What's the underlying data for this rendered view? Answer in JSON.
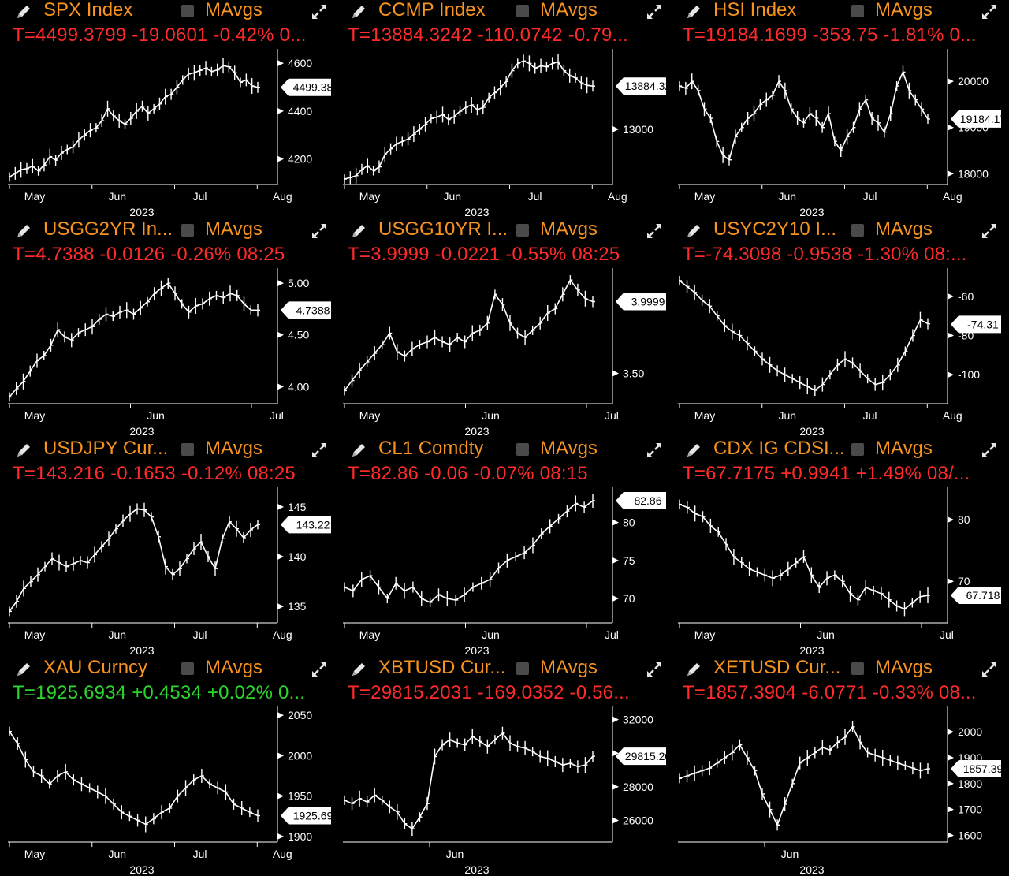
{
  "colors": {
    "ticker": "#f7931e",
    "negative": "#ff2a2a",
    "positive": "#2bd62b",
    "background": "#000000",
    "price_line": "#ffffff",
    "ma_toggle": "#4a4a4a"
  },
  "icons": {
    "edit": "pencil-icon",
    "expand": "expand-arrows-icon",
    "toggle": "checkbox-icon"
  },
  "ma_label": "MAvgs",
  "year_label": "2023",
  "panels": [
    {
      "ticker": "SPX Index",
      "quote": "T=4499.3799 -19.0601 -0.42% 0...",
      "direction": "neg",
      "chart_data": {
        "type": "line",
        "x_labels": [
          "May",
          "Jun",
          "Jul",
          "Aug"
        ],
        "y_ticks": [
          "4600",
          "4400",
          "4200"
        ],
        "ylim": [
          4100,
          4640
        ],
        "last_value_label": "4499.38",
        "last": 4499.38,
        "values": [
          4125,
          4140,
          4155,
          4160,
          4170,
          4150,
          4175,
          4210,
          4195,
          4225,
          4240,
          4250,
          4280,
          4300,
          4320,
          4330,
          4360,
          4410,
          4380,
          4360,
          4345,
          4370,
          4400,
          4420,
          4390,
          4410,
          4430,
          4460,
          4470,
          4500,
          4530,
          4555,
          4560,
          4570,
          4580,
          4565,
          4572,
          4590,
          4585,
          4560,
          4520,
          4530,
          4505,
          4499
        ]
      }
    },
    {
      "ticker": "CCMP Index",
      "quote": "T=13884.3242 -110.0742 -0.79...",
      "direction": "neg",
      "chart_data": {
        "type": "line",
        "x_labels": [
          "May",
          "Jun",
          "Jul",
          "Aug"
        ],
        "y_ticks": [
          "13000"
        ],
        "ylim": [
          11900,
          14550
        ],
        "last_value_label": "13884.32",
        "last": 13884.32,
        "values": [
          11980,
          12010,
          12050,
          12180,
          12250,
          12150,
          12230,
          12480,
          12600,
          12700,
          12750,
          12800,
          12900,
          13000,
          13100,
          13220,
          13250,
          13300,
          13200,
          13260,
          13370,
          13450,
          13500,
          13400,
          13450,
          13650,
          13750,
          13850,
          13980,
          14200,
          14350,
          14400,
          14350,
          14250,
          14300,
          14280,
          14350,
          14380,
          14200,
          14100,
          14050,
          13950,
          13900,
          13884
        ]
      }
    },
    {
      "ticker": "HSI Index",
      "quote": "T=19184.1699 -353.75 -1.81% 0...",
      "direction": "neg",
      "chart_data": {
        "type": "line",
        "x_labels": [
          "May",
          "Jun",
          "Jul",
          "Aug"
        ],
        "y_ticks": [
          "20000",
          "19000",
          "18000"
        ],
        "ylim": [
          17800,
          20600
        ],
        "last_value_label": "19184.17",
        "last": 19184.17,
        "values": [
          19900,
          19850,
          20000,
          19800,
          19400,
          19200,
          18700,
          18400,
          18300,
          18800,
          19000,
          19200,
          19300,
          19500,
          19600,
          19700,
          20000,
          19800,
          19400,
          19200,
          19100,
          19300,
          19200,
          19000,
          19300,
          18700,
          18500,
          18800,
          19000,
          19400,
          19600,
          19200,
          19100,
          18900,
          19300,
          19900,
          20200,
          19800,
          19600,
          19400,
          19184
        ]
      }
    },
    {
      "ticker": "USGG2YR In...",
      "quote": "T=4.7388 -0.0126 -0.26% 08:25",
      "direction": "neg",
      "chart_data": {
        "type": "line",
        "x_labels": [
          "May",
          "Jun",
          "Jul"
        ],
        "y_ticks": [
          "5.00",
          "4.50",
          "4.00"
        ],
        "ylim": [
          3.85,
          5.1
        ],
        "last_value_label": "4.7388",
        "last": 4.7388,
        "values": [
          3.9,
          3.98,
          4.05,
          4.15,
          4.25,
          4.3,
          4.4,
          4.55,
          4.48,
          4.45,
          4.52,
          4.55,
          4.58,
          4.65,
          4.7,
          4.68,
          4.72,
          4.74,
          4.7,
          4.76,
          4.82,
          4.9,
          4.95,
          5.0,
          4.9,
          4.8,
          4.72,
          4.78,
          4.8,
          4.85,
          4.88,
          4.86,
          4.9,
          4.88,
          4.8,
          4.74,
          4.7388
        ]
      }
    },
    {
      "ticker": "USGG10YR I...",
      "quote": "T=3.9999 -0.0221 -0.55% 08:25",
      "direction": "neg",
      "chart_data": {
        "type": "line",
        "x_labels": [
          "May",
          "Jun",
          "Jul"
        ],
        "y_ticks": [
          "3.50"
        ],
        "ylim": [
          3.3,
          4.2
        ],
        "last_value_label": "3.9999",
        "last": 3.9999,
        "values": [
          3.38,
          3.45,
          3.52,
          3.58,
          3.64,
          3.7,
          3.78,
          3.65,
          3.62,
          3.67,
          3.7,
          3.72,
          3.75,
          3.72,
          3.7,
          3.75,
          3.72,
          3.78,
          3.8,
          3.85,
          4.05,
          3.98,
          3.85,
          3.78,
          3.75,
          3.8,
          3.85,
          3.92,
          3.95,
          4.05,
          4.15,
          4.08,
          4.02,
          3.9999
        ]
      }
    },
    {
      "ticker": "USYC2Y10 I...",
      "quote": "T=-74.3098 -0.9538 -1.30% 08:...",
      "direction": "neg",
      "chart_data": {
        "type": "line",
        "x_labels": [
          "May",
          "Jun",
          "Jul",
          "Aug"
        ],
        "y_ticks": [
          "-60",
          "-80",
          "-100"
        ],
        "ylim": [
          -114,
          -48
        ],
        "last_value_label": "-74.31",
        "last": -74.31,
        "values": [
          -52,
          -55,
          -58,
          -62,
          -65,
          -70,
          -75,
          -78,
          -80,
          -84,
          -88,
          -92,
          -95,
          -98,
          -100,
          -102,
          -104,
          -106,
          -108,
          -105,
          -100,
          -95,
          -92,
          -94,
          -98,
          -102,
          -105,
          -104,
          -100,
          -95,
          -88,
          -80,
          -72,
          -74
        ]
      }
    },
    {
      "ticker": "USDJPY Cur...",
      "quote": "T=143.216 -0.1653 -0.12% 08:25",
      "direction": "neg",
      "chart_data": {
        "type": "line",
        "x_labels": [
          "May",
          "Jun",
          "Jul",
          "Aug"
        ],
        "y_ticks": [
          "145",
          "140",
          "135"
        ],
        "ylim": [
          133.5,
          146.5
        ],
        "last_value_label": "143.22",
        "last": 143.22,
        "values": [
          134.5,
          135.5,
          136.8,
          137.5,
          138.2,
          139.0,
          139.8,
          139.4,
          139.0,
          139.3,
          139.6,
          139.4,
          140.2,
          141.0,
          141.8,
          142.8,
          143.6,
          144.3,
          144.8,
          144.7,
          144.0,
          142.0,
          139.0,
          138.2,
          138.8,
          139.8,
          140.8,
          141.5,
          140.0,
          138.8,
          141.8,
          143.5,
          142.8,
          141.9,
          142.7,
          143.22
        ]
      }
    },
    {
      "ticker": "CL1 Comdty",
      "quote": "T=82.86 -0.06 -0.07% 08:15",
      "direction": "neg",
      "chart_data": {
        "type": "line",
        "x_labels": [
          "May",
          "Jun",
          "Jul"
        ],
        "y_ticks": [
          "80",
          "75",
          "70"
        ],
        "ylim": [
          67,
          84
        ],
        "last_value_label": "82.86",
        "last": 82.86,
        "values": [
          71.5,
          71.0,
          72.5,
          73.0,
          71.5,
          70.0,
          72.0,
          71.0,
          71.5,
          70.0,
          69.5,
          70.5,
          70.0,
          69.8,
          70.5,
          71.5,
          72.0,
          72.5,
          74.0,
          75.0,
          75.5,
          76.0,
          77.0,
          78.5,
          79.5,
          80.5,
          81.5,
          82.5,
          82.0,
          82.86
        ]
      }
    },
    {
      "ticker": "CDX IG CDSI...",
      "quote": "T=67.7175 +0.9941 +1.49% 08/...",
      "direction": "neg",
      "chart_data": {
        "type": "line",
        "x_labels": [
          "May",
          "Jun",
          "Jul"
        ],
        "y_ticks": [
          "80",
          "70"
        ],
        "ylim": [
          63.5,
          84.5
        ],
        "last_value_label": "67.718",
        "last": 67.718,
        "values": [
          82.5,
          82.0,
          81.0,
          80.5,
          79.0,
          78.0,
          76.0,
          74.0,
          73.0,
          72.0,
          71.5,
          71.0,
          70.5,
          71.0,
          72.0,
          73.0,
          74.0,
          71.0,
          69.0,
          70.5,
          71.0,
          70.0,
          68.0,
          67.0,
          69.0,
          68.5,
          68.0,
          67.0,
          66.0,
          65.5,
          66.5,
          67.5,
          67.7175
        ]
      }
    },
    {
      "ticker": "XAU Curncy",
      "quote": "T=1925.6934 +0.4534 +0.02% 0...",
      "direction": "pos",
      "chart_data": {
        "type": "line",
        "x_labels": [
          "May",
          "Jun",
          "Jul",
          "Aug"
        ],
        "y_ticks": [
          "2050",
          "2000",
          "1950",
          "1900"
        ],
        "ylim": [
          1895,
          2055
        ],
        "last_value_label": "1925.69",
        "last": 1925.69,
        "values": [
          2030,
          2015,
          1995,
          1980,
          1975,
          1965,
          1975,
          1980,
          1970,
          1965,
          1960,
          1955,
          1950,
          1940,
          1930,
          1925,
          1920,
          1915,
          1922,
          1930,
          1935,
          1950,
          1960,
          1970,
          1975,
          1965,
          1960,
          1955,
          1940,
          1935,
          1930,
          1925.69
        ]
      }
    },
    {
      "ticker": "XBTUSD Cur...",
      "quote": "T=29815.2031 -169.0352 -0.56...",
      "direction": "neg",
      "chart_data": {
        "type": "line",
        "x_labels": [
          "Jun"
        ],
        "y_ticks": [
          "32000",
          "30000",
          "28000",
          "26000"
        ],
        "ylim": [
          24800,
          32500
        ],
        "last_value_label": "29815.20",
        "last": 29815.2,
        "values": [
          27200,
          27000,
          27300,
          27100,
          27500,
          27200,
          26800,
          26500,
          25800,
          25500,
          26200,
          27000,
          29800,
          30500,
          30800,
          30600,
          30500,
          31000,
          30700,
          30400,
          30800,
          31200,
          30600,
          30400,
          30300,
          30100,
          29800,
          29700,
          29500,
          29300,
          29400,
          29200,
          29300,
          29815.2
        ]
      }
    },
    {
      "ticker": "XETUSD Cur...",
      "quote": "T=1857.3904 -6.0771 -0.33% 08...",
      "direction": "neg",
      "chart_data": {
        "type": "line",
        "x_labels": [
          "Jun"
        ],
        "y_ticks": [
          "2000",
          "1900",
          "1800",
          "1700",
          "1600"
        ],
        "ylim": [
          1580,
          2080
        ],
        "last_value_label": "1857.39",
        "last": 1857.39,
        "values": [
          1820,
          1830,
          1840,
          1850,
          1860,
          1880,
          1900,
          1920,
          1950,
          1900,
          1850,
          1760,
          1700,
          1640,
          1720,
          1800,
          1880,
          1900,
          1920,
          1940,
          1930,
          1960,
          1980,
          2020,
          1960,
          1920,
          1910,
          1900,
          1890,
          1880,
          1870,
          1860,
          1850,
          1857.39
        ]
      }
    }
  ]
}
